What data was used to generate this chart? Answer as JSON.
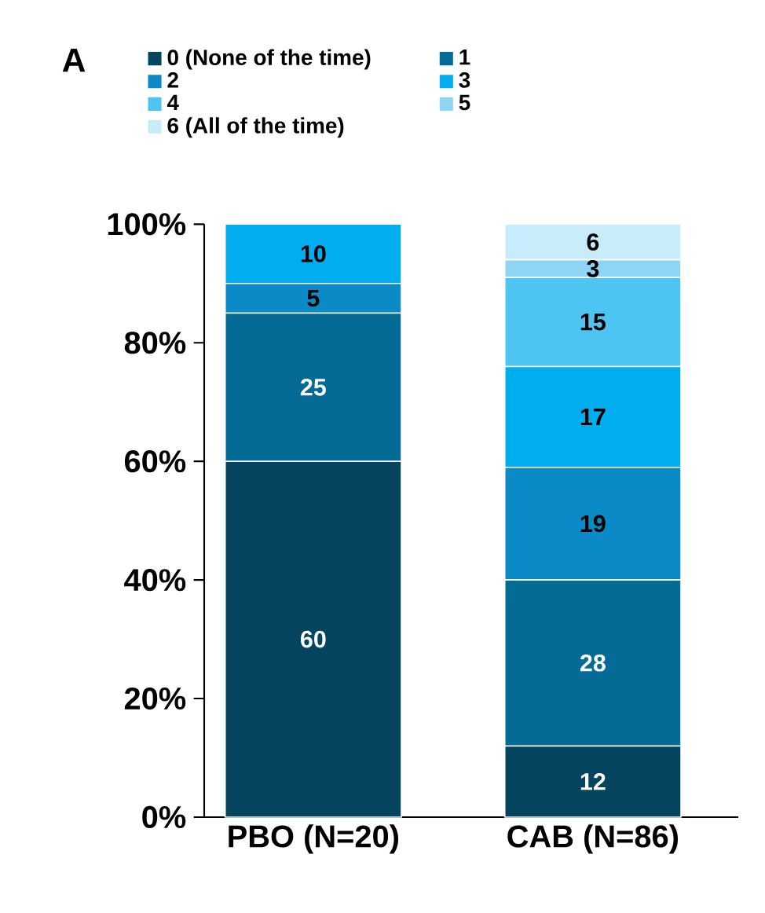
{
  "chart_data": {
    "type": "bar",
    "stacked": true,
    "categories": [
      "PBO (N=20)",
      "CAB (N=86)"
    ],
    "series": [
      {
        "name": "0 (None of the time)",
        "color": "#05445e",
        "values": [
          60,
          12
        ],
        "value_labels": [
          "60",
          "12"
        ]
      },
      {
        "name": "1",
        "color": "#036b96",
        "values": [
          25,
          28
        ],
        "value_labels": [
          "25",
          "28"
        ]
      },
      {
        "name": "2",
        "color": "#0a8ac7",
        "values": [
          5,
          19
        ],
        "value_labels": [
          "5",
          "19"
        ]
      },
      {
        "name": "3",
        "color": "#00aeef",
        "values": [
          10,
          17
        ],
        "value_labels": [
          "10",
          "17"
        ]
      },
      {
        "name": "4",
        "color": "#4ec4f2",
        "values": [
          0,
          15
        ],
        "value_labels": [
          null,
          "15"
        ]
      },
      {
        "name": "5",
        "color": "#8dd5f3",
        "values": [
          0,
          3
        ],
        "value_labels": [
          null,
          "3"
        ]
      },
      {
        "name": "6 (All of the time)",
        "color": "#c8ecfa",
        "values": [
          0,
          6
        ],
        "value_labels": [
          null,
          "6"
        ]
      }
    ],
    "ylim": [
      0,
      100
    ],
    "yticks": [
      {
        "value": 0,
        "label": "0%"
      },
      {
        "value": 20,
        "label": "20%"
      },
      {
        "value": 40,
        "label": "40%"
      },
      {
        "value": 60,
        "label": "60%"
      },
      {
        "value": 80,
        "label": "80%"
      },
      {
        "value": 100,
        "label": "100%"
      }
    ],
    "legend": "top",
    "grid": false,
    "annotations": [
      "A"
    ]
  }
}
